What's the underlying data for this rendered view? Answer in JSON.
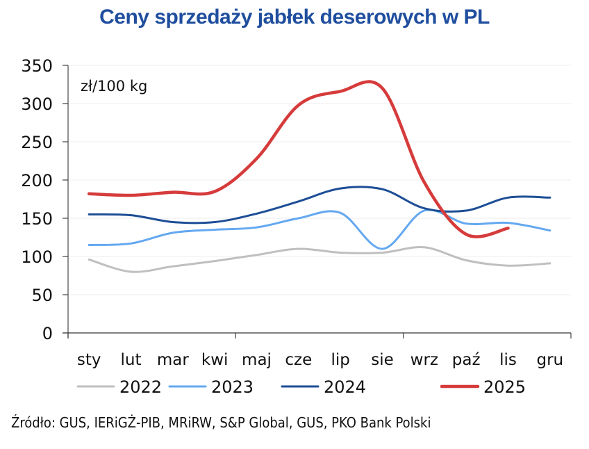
{
  "chart_data": {
    "type": "line",
    "title": "Ceny sprzedaży jabłek deserowych w PL",
    "unit_label": "zł/100 kg",
    "xlabel": "",
    "ylabel": "",
    "categories": [
      "sty",
      "lut",
      "mar",
      "kwi",
      "maj",
      "cze",
      "lip",
      "sie",
      "wrz",
      "paź",
      "lis",
      "gru"
    ],
    "ylim": [
      0,
      350
    ],
    "yticks": [
      0,
      50,
      100,
      150,
      200,
      250,
      300,
      350
    ],
    "grid": true,
    "legend_position": "bottom",
    "series": [
      {
        "name": "2022",
        "color": "#bfbfbf",
        "values": [
          96,
          80,
          87,
          94,
          102,
          110,
          105,
          105,
          112,
          95,
          88,
          91
        ]
      },
      {
        "name": "2023",
        "color": "#64a8f0",
        "values": [
          115,
          117,
          131,
          135,
          138,
          150,
          157,
          110,
          160,
          143,
          144,
          134
        ]
      },
      {
        "name": "2024",
        "color": "#1d4e96",
        "values": [
          155,
          154,
          145,
          145,
          156,
          172,
          189,
          188,
          163,
          160,
          177,
          177
        ]
      },
      {
        "name": "2025",
        "color": "#d63b3b",
        "values": [
          182,
          180,
          184,
          185,
          228,
          298,
          316,
          320,
          197,
          129,
          137,
          null
        ]
      }
    ]
  },
  "source": "Źródło: GUS, IERiGŻ-PIB, MRiRW, S&P Global, GUS, PKO Bank Polski"
}
